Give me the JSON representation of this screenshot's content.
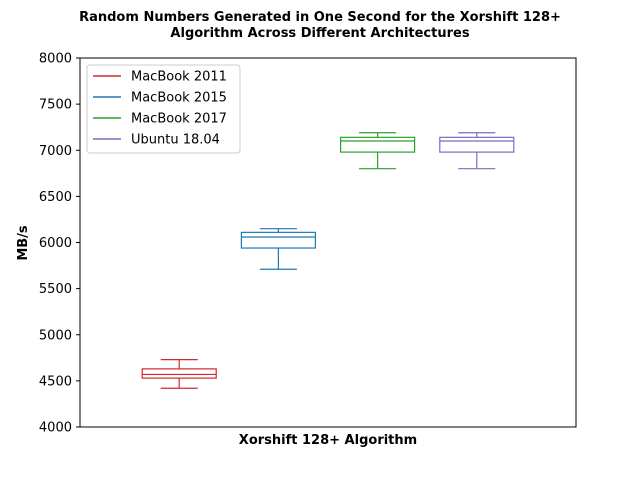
{
  "chart_data": {
    "type": "box",
    "title": "Random Numbers Generated in One Second for the Xorshift 128+ Algorithm Across Different Architectures",
    "title_lines": [
      "Random Numbers Generated in One Second for the Xorshift 128+",
      "Algorithm Across Different Architectures"
    ],
    "xlabel": "Xorshift 128+ Algorithm",
    "ylabel": "MB/s",
    "ylim": [
      4000,
      8000
    ],
    "yticks": [
      4000,
      4500,
      5000,
      5500,
      6000,
      6500,
      7000,
      7500,
      8000
    ],
    "legend_position": "top-left",
    "series": [
      {
        "name": "MacBook 2011",
        "color": "#d62728",
        "whisker_low": 4420,
        "q1": 4530,
        "median": 4570,
        "q3": 4630,
        "whisker_high": 4730
      },
      {
        "name": "MacBook 2015",
        "color": "#1f77b4",
        "whisker_low": 5710,
        "q1": 5940,
        "median": 6060,
        "q3": 6110,
        "whisker_high": 6150
      },
      {
        "name": "MacBook 2017",
        "color": "#2ca02c",
        "whisker_low": 6800,
        "q1": 6980,
        "median": 7100,
        "q3": 7140,
        "whisker_high": 7190
      },
      {
        "name": "Ubuntu 18.04",
        "color": "#7b6bbf",
        "whisker_low": 6800,
        "q1": 6980,
        "median": 7100,
        "q3": 7140,
        "whisker_high": 7190
      }
    ]
  }
}
